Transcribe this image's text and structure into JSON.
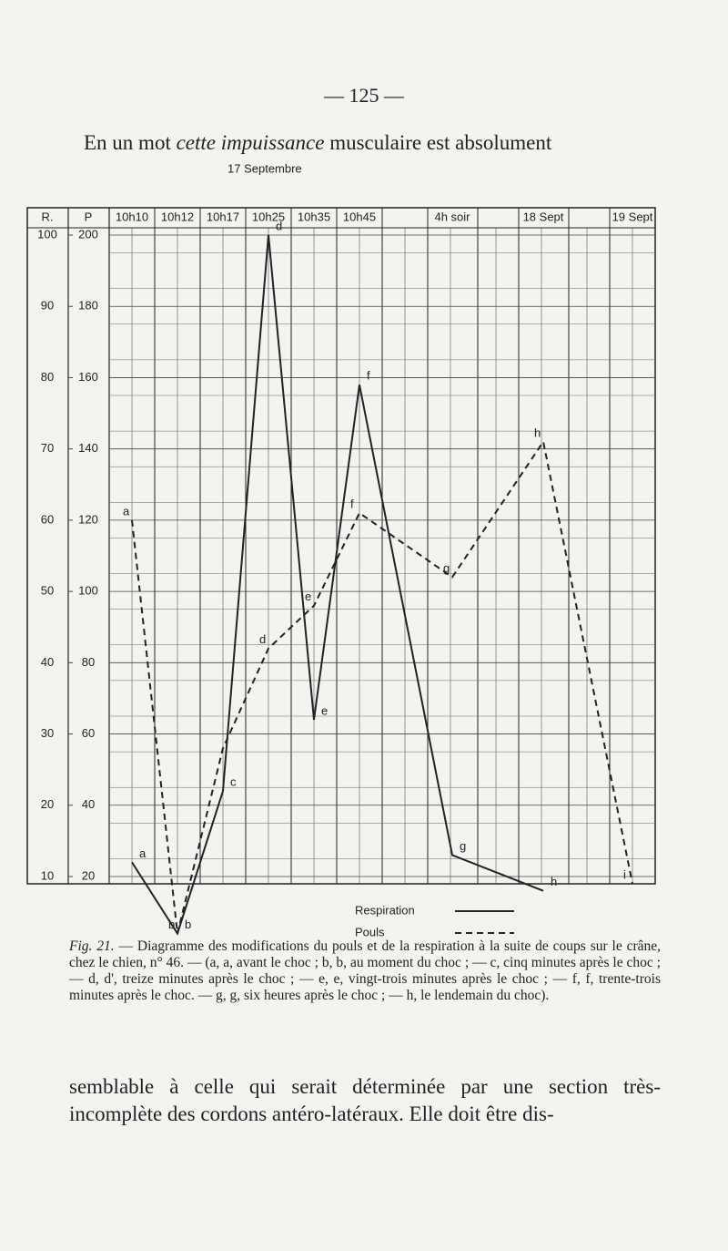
{
  "header": {
    "page_number": "— 125 —"
  },
  "intro": {
    "before": "En un mot ",
    "italic": "cette impuissance",
    "after": " musculaire est absolument"
  },
  "figure": {
    "top_label": "17 Septembre",
    "r_header": "R.",
    "p_header": "P",
    "chart_data": {
      "type": "line",
      "categories": [
        "10h10",
        "10h12",
        "10h17",
        "10h25",
        "10h35",
        "10h45",
        "4h soir",
        "18 Sept",
        "19 Sept"
      ],
      "ylim": [
        10,
        100
      ],
      "yticks": [
        10,
        20,
        30,
        40,
        50,
        60,
        70,
        80,
        90,
        100
      ],
      "y2lim": [
        20,
        200
      ],
      "y2ticks": [
        20,
        40,
        60,
        80,
        100,
        120,
        140,
        160,
        180,
        200
      ],
      "grid": true,
      "series": [
        {
          "name": "Respiration",
          "color": "#222222",
          "dash": "solid",
          "values": [
            12,
            2,
            22,
            100,
            32,
            79,
            13,
            8,
            null
          ],
          "point_labels": [
            "a",
            "b",
            "c",
            "d",
            "e",
            "f",
            "g",
            "h",
            null
          ]
        },
        {
          "name": "Pouls",
          "color": "#222222",
          "dash": "dashed",
          "axis": "y2",
          "values": [
            120,
            4,
            56,
            84,
            96,
            122,
            104,
            142,
            18
          ],
          "point_labels": [
            "a",
            "b",
            null,
            "d",
            "e",
            "f",
            "g",
            "h",
            "i"
          ]
        }
      ]
    },
    "caption": {
      "label": "Fig. 21.",
      "text": "— Diagramme des modifications du pouls et de la respiration à la suite de coups sur le crâne, chez le chien, n° 46. — (a, a, avant le choc ; b, b, au moment du choc ; — c, cinq minutes après le choc ; — d, d', treize minutes après le choc ; — e, e, vingt-trois minutes après le choc ; — f, f, trente-trois minutes après le choc. — g, g, six heures après le choc ; — h, le lendemain du choc)."
    }
  },
  "body": {
    "text": "semblable à celle qui serait déterminée par une section très-incomplète des cordons antéro-latéraux. Elle doit être dis-"
  }
}
